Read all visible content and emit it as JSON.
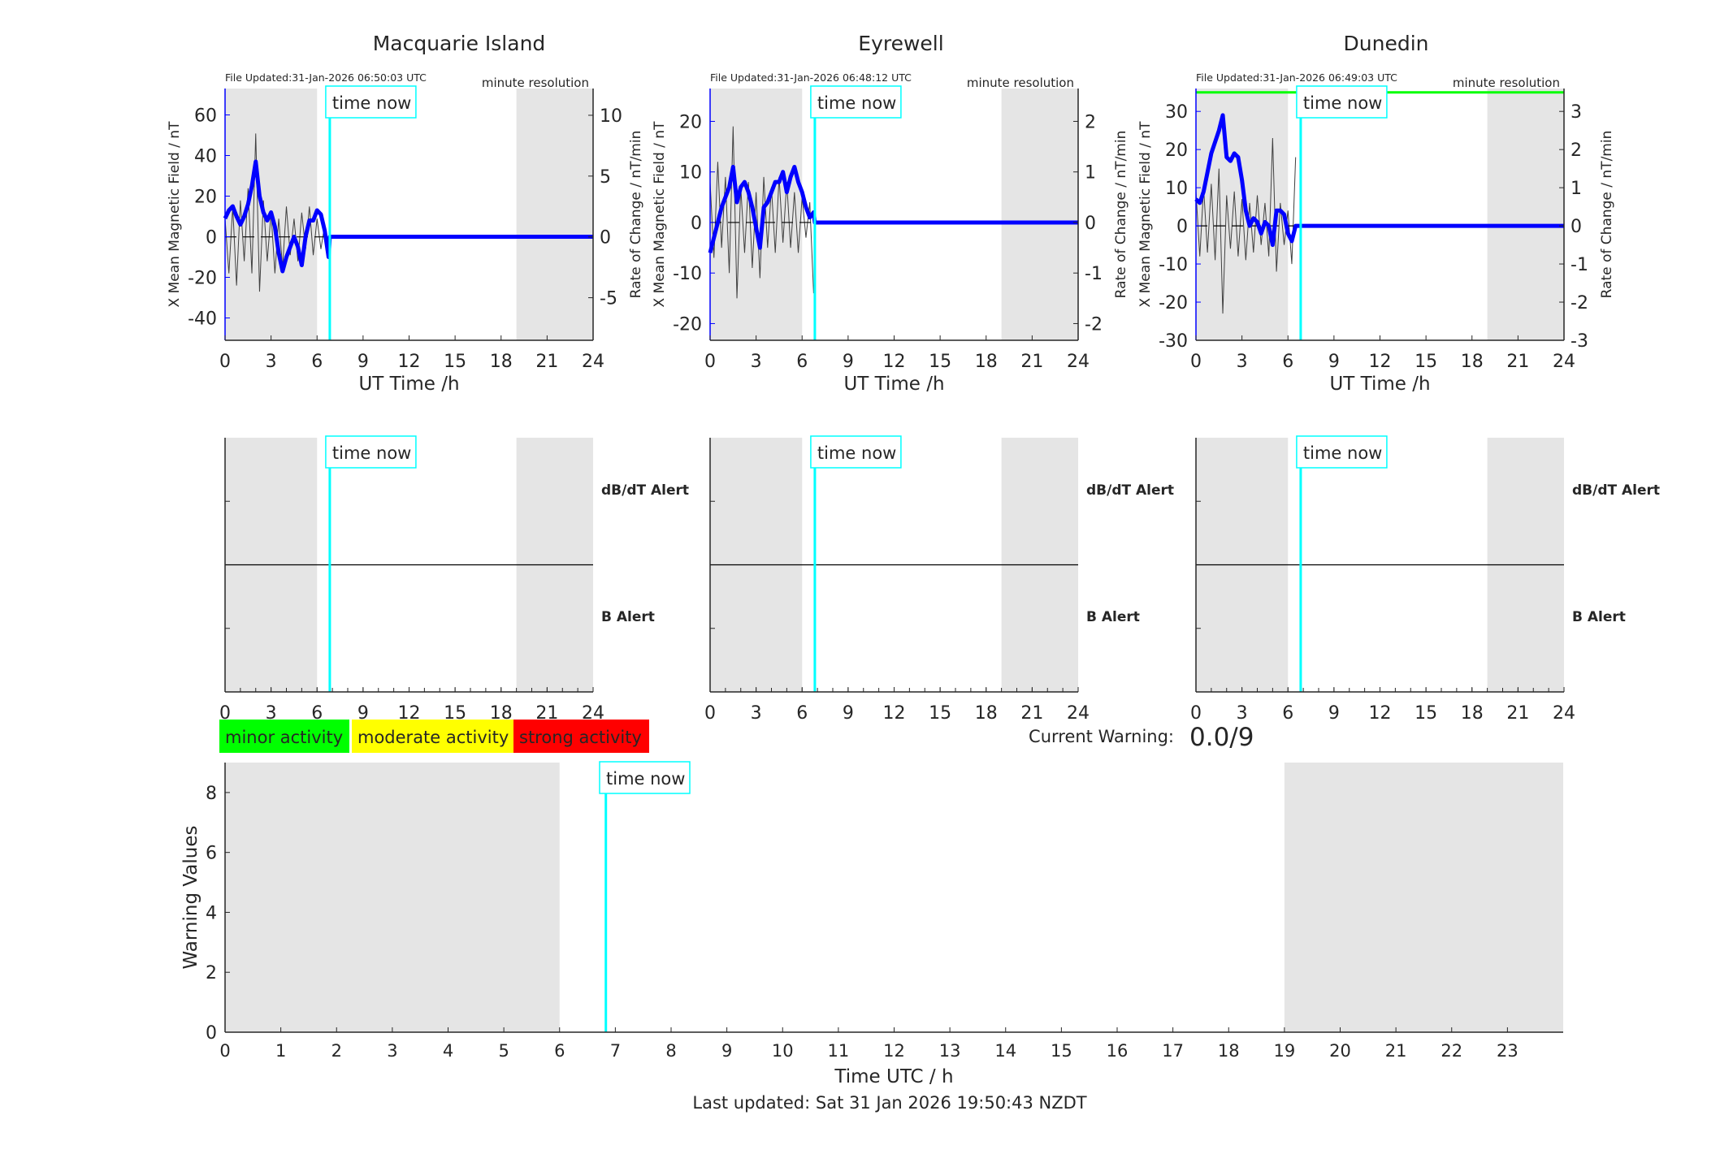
{
  "colors": {
    "field": "#0000ff",
    "rate": "#404040",
    "time_now": "#00ffff",
    "night": "#e5e5e5",
    "threshold": "#00ff00",
    "minor": "#00ff00",
    "moderate": "#ffff00",
    "strong": "#ff0000"
  },
  "time_now_label": "time now",
  "time_now_h": 6.83,
  "night_regions_h": [
    [
      0,
      6
    ],
    [
      19,
      24
    ]
  ],
  "chart_data": [
    {
      "type": "line",
      "station": "Macquarie Island",
      "file_updated": "File Updated:31-Jan-2026 06:50:03 UTC",
      "resolution": "minute resolution",
      "xlabel": "UT Time /h",
      "ylabel_left": "X Mean Magnetic Field / nT",
      "ylabel_right": "Rate of Change / nT/min",
      "xlim": [
        0,
        24
      ],
      "xticks": [
        0,
        3,
        6,
        9,
        12,
        15,
        18,
        21,
        24
      ],
      "ylim_left": [
        -51,
        73
      ],
      "yticks_left": [
        -40,
        -20,
        0,
        20,
        40,
        60
      ],
      "ylim_right": [
        -8.5,
        12.2
      ],
      "yticks_right": [
        -5,
        0,
        5,
        10
      ],
      "x_field_step_h": 0.25,
      "x_field": [
        9,
        13,
        15,
        10,
        6,
        10,
        16,
        25,
        37,
        20,
        12,
        8,
        12,
        5,
        -8,
        -17,
        -10,
        -5,
        0,
        -5,
        -14,
        0,
        8,
        8,
        13,
        11,
        3,
        -10
      ],
      "rate": [
        1.5,
        -3,
        2.5,
        -4,
        3,
        -2,
        4,
        -3,
        8.5,
        -4.5,
        3,
        -2,
        2,
        -3,
        1.5,
        -2.5,
        2.5,
        -1.5,
        1.5,
        -2,
        2,
        -1,
        2.5,
        -1.5,
        1.5,
        -1,
        1,
        -1.5
      ],
      "threshold": null
    },
    {
      "type": "line",
      "station": "Eyrewell",
      "file_updated": "File Updated:31-Jan-2026 06:48:12 UTC",
      "resolution": "minute resolution",
      "xlabel": "UT Time /h",
      "ylabel_left": "X Mean Magnetic Field / nT",
      "ylabel_right": "Rate of Change / nT/min",
      "xlim": [
        0,
        24
      ],
      "xticks": [
        0,
        3,
        6,
        9,
        12,
        15,
        18,
        21,
        24
      ],
      "ylim_left": [
        -23.3,
        26.5
      ],
      "yticks_left": [
        -20,
        -10,
        0,
        10,
        20
      ],
      "ylim_right": [
        -2.33,
        2.65
      ],
      "yticks_right": [
        -2,
        -1,
        0,
        1,
        2
      ],
      "x_field_step_h": 0.25,
      "x_field": [
        -6,
        -3,
        0,
        3,
        5,
        7,
        11,
        4,
        7,
        8,
        6,
        3,
        -1,
        -5,
        3,
        4,
        6,
        8,
        8,
        10,
        6,
        9,
        11,
        8,
        6,
        3,
        1,
        2
      ],
      "rate": [
        0.8,
        -0.7,
        1.2,
        -0.5,
        0.9,
        -1.0,
        1.9,
        -1.5,
        0.7,
        -0.6,
        0.8,
        -0.9,
        0.6,
        -1.1,
        0.9,
        -0.5,
        0.7,
        -0.6,
        0.9,
        -0.4,
        0.8,
        -0.5,
        0.6,
        -0.6,
        0.5,
        -0.3,
        0.4,
        -1.4
      ],
      "threshold": null
    },
    {
      "type": "line",
      "station": "Dunedin",
      "file_updated": "File Updated:31-Jan-2026 06:49:03 UTC",
      "resolution": "minute resolution",
      "xlabel": "UT Time /h",
      "ylabel_left": "X Mean Magnetic Field / nT",
      "ylabel_right": "Rate of Change / nT/min",
      "xlim": [
        0,
        24
      ],
      "xticks": [
        0,
        3,
        6,
        9,
        12,
        15,
        18,
        21,
        24
      ],
      "ylim_left": [
        -30,
        36
      ],
      "yticks_left": [
        -30,
        -20,
        -10,
        0,
        10,
        20,
        30
      ],
      "ylim_right": [
        -3,
        3.6
      ],
      "yticks_right": [
        -3,
        -2,
        -1,
        0,
        1,
        2,
        3
      ],
      "x_field_step_h": 0.25,
      "x_field": [
        7,
        6,
        9,
        14,
        19,
        22,
        25,
        29,
        18,
        17,
        19,
        18,
        12,
        4,
        0,
        2,
        1,
        -2,
        1,
        0,
        -5,
        4,
        4,
        3,
        -2,
        -4,
        0
      ],
      "rate": [
        0.9,
        -0.8,
        1.0,
        -0.7,
        1.1,
        -0.9,
        1.5,
        -2.3,
        0.8,
        -0.6,
        0.9,
        -0.8,
        0.7,
        -0.9,
        0.6,
        -0.7,
        0.8,
        -0.5,
        0.6,
        -0.8,
        2.3,
        -1.2,
        0.6,
        -0.5,
        0.4,
        -1.0,
        1.8
      ],
      "threshold": 35
    },
    {
      "type": "line",
      "panel": "alerts",
      "labels": {
        "dbdt": "dB/dT Alert",
        "b": "B Alert"
      },
      "xlim": [
        0,
        24
      ],
      "xticks": [
        0,
        3,
        6,
        9,
        12,
        15,
        18,
        21,
        24
      ]
    },
    {
      "type": "bar",
      "panel": "warning",
      "xlabel": "Time UTC / h",
      "ylabel": "Warning Values",
      "xlim": [
        0,
        24
      ],
      "xticks": [
        0,
        1,
        2,
        3,
        4,
        5,
        6,
        7,
        8,
        9,
        10,
        11,
        12,
        13,
        14,
        15,
        16,
        17,
        18,
        19,
        20,
        21,
        22,
        23
      ],
      "ylim": [
        0,
        9
      ],
      "yticks": [
        0,
        2,
        4,
        6,
        8
      ],
      "values": []
    }
  ],
  "legend": {
    "minor": "minor activity",
    "moderate": "moderate activity",
    "strong": "strong activity"
  },
  "current_warning": {
    "label": "Current Warning:",
    "value": "0.0/9"
  },
  "last_updated": "Last updated: Sat 31 Jan 2026 19:50:43 NZDT"
}
